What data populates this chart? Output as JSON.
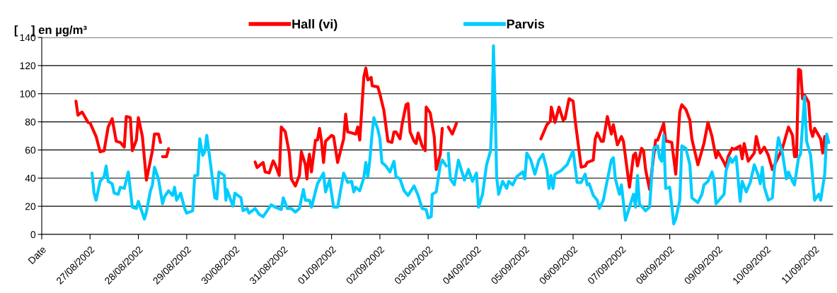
{
  "chart_data": {
    "type": "line",
    "ylabel": "[    ] en µg/m³",
    "xlim": [
      "2002-08-26",
      "2002-09-11T09:00"
    ],
    "xticks": [
      {
        "value": "2002-08-26",
        "label": "Date"
      },
      {
        "value": "2002-08-27",
        "label": "27/08/2002"
      },
      {
        "value": "2002-08-28",
        "label": "28/08/2002"
      },
      {
        "value": "2002-08-29",
        "label": "29/08/2002"
      },
      {
        "value": "2002-08-30",
        "label": "30/08/2002"
      },
      {
        "value": "2002-08-31",
        "label": "31/08/2002"
      },
      {
        "value": "2002-09-01",
        "label": "01/09/2002"
      },
      {
        "value": "2002-09-02",
        "label": "02/09/2002"
      },
      {
        "value": "2002-09-03",
        "label": "03/09/2002"
      },
      {
        "value": "2002-09-04",
        "label": "04/09/2002"
      },
      {
        "value": "2002-09-05",
        "label": "05/09/2002"
      },
      {
        "value": "2002-09-06",
        "label": "06/09/2002"
      },
      {
        "value": "2002-09-07",
        "label": "07/09/2002"
      },
      {
        "value": "2002-09-08",
        "label": "08/09/2002"
      },
      {
        "value": "2002-09-09",
        "label": "09/09/2002"
      },
      {
        "value": "2002-09-10",
        "label": "10/09/2002"
      },
      {
        "value": "2002-09-11",
        "label": "11/09/2002"
      }
    ],
    "ylim": [
      0,
      140
    ],
    "yticks": [
      0,
      20,
      40,
      60,
      80,
      100,
      120,
      140
    ],
    "grid": "y",
    "legend": "top",
    "marker": "none",
    "line_style": "solid",
    "series": [
      {
        "name": "Hall (vi)",
        "color": "#ff0000",
        "x": [
          "2002-08-26T17:00",
          "2002-08-26T18:00",
          "2002-08-26T20:00",
          "2002-08-26T21:00",
          "2002-08-26T23:00",
          "2002-08-27T00:00",
          "2002-08-27T03:00",
          "2002-08-27T05:00",
          "2002-08-27T07:00",
          "2002-08-27T09:00",
          "2002-08-27T11:00",
          "2002-08-27T13:00",
          "2002-08-27T15:00",
          "2002-08-27T17:00",
          "2002-08-27T18:00",
          "2002-08-27T20:00",
          "2002-08-27T21:00",
          "2002-08-27T23:00",
          "2002-08-28T00:00",
          "2002-08-28T02:00",
          "2002-08-28T04:00",
          "2002-08-28T07:00",
          "2002-08-28T08:00",
          "2002-08-28T10:00",
          "2002-08-28T11:00",
          "2002-08-28T11:30",
          "2002-08-28T12:00",
          "2002-08-28T14:00",
          "2002-08-28T15:00",
          "2002-08-29T12:00",
          "2002-08-30T10:00",
          "2002-08-30T11:00",
          "2002-08-30T14:00",
          "2002-08-30T15:00",
          "2002-08-30T17:00",
          "2002-08-30T19:00",
          "2002-08-30T20:00",
          "2002-08-30T22:00",
          "2002-08-30T23:00",
          "2002-08-31T01:00",
          "2002-08-31T03:00",
          "2002-08-31T04:00",
          "2002-08-31T06:00",
          "2002-08-31T08:00",
          "2002-08-31T09:00",
          "2002-08-31T11:00",
          "2002-08-31T11:45",
          "2002-08-31T12:15",
          "2002-08-31T13:00",
          "2002-08-31T14:00",
          "2002-08-31T16:00",
          "2002-08-31T17:00",
          "2002-08-31T18:00",
          "2002-08-31T19:00",
          "2002-08-31T20:00",
          "2002-08-31T21:00",
          "2002-09-01T00:00",
          "2002-09-01T01:00",
          "2002-09-01T03:00",
          "2002-09-01T06:00",
          "2002-09-01T07:00",
          "2002-09-01T08:00",
          "2002-09-01T10:00",
          "2002-09-01T12:00",
          "2002-09-01T13:00",
          "2002-09-01T14:00",
          "2002-09-01T15:00",
          "2002-09-01T16:00",
          "2002-09-01T17:00",
          "2002-09-01T18:00",
          "2002-09-01T19:40",
          "2002-09-01T20:10",
          "2002-09-01T23:00",
          "2002-09-02T00:00",
          "2002-09-02T02:00",
          "2002-09-02T04:00",
          "2002-09-02T06:00",
          "2002-09-02T07:00",
          "2002-09-02T08:00",
          "2002-09-02T10:00",
          "2002-09-02T11:00",
          "2002-09-02T13:00",
          "2002-09-02T14:00",
          "2002-09-02T15:00",
          "2002-09-02T17:00",
          "2002-09-02T18:00",
          "2002-09-02T19:00",
          "2002-09-02T21:00",
          "2002-09-02T22:30",
          "2002-09-02T23:00",
          "2002-09-03T01:00",
          "2002-09-03T03:00",
          "2002-09-03T04:00",
          "2002-09-03T06:00",
          "2002-09-03T07:00",
          "2002-09-03T08:00",
          "2002-09-03T10:00",
          "2002-09-03T12:00",
          "2002-09-03T14:00",
          "2002-09-04T12:00",
          "2002-09-05T08:00",
          "2002-09-05T11:00",
          "2002-09-05T12:40",
          "2002-09-05T13:10",
          "2002-09-05T15:00",
          "2002-09-05T17:00",
          "2002-09-05T19:00",
          "2002-09-05T20:00",
          "2002-09-05T22:00",
          "2002-09-06T00:00",
          "2002-09-06T01:00",
          "2002-09-06T04:00",
          "2002-09-06T06:00",
          "2002-09-06T07:00",
          "2002-09-06T10:00",
          "2002-09-06T11:00",
          "2002-09-06T12:00",
          "2002-09-06T14:00",
          "2002-09-06T15:00",
          "2002-09-06T17:00",
          "2002-09-06T19:00",
          "2002-09-06T20:00",
          "2002-09-06T22:00",
          "2002-09-07T00:00",
          "2002-09-07T01:00",
          "2002-09-07T04:00",
          "2002-09-07T06:00",
          "2002-09-07T07:00",
          "2002-09-07T08:00",
          "2002-09-07T10:00",
          "2002-09-07T11:00",
          "2002-09-07T12:00",
          "2002-09-07T14:00",
          "2002-09-07T17:00",
          "2002-09-07T18:00",
          "2002-09-07T21:00",
          "2002-09-07T22:00",
          "2002-09-07T23:00",
          "2002-09-08T01:00",
          "2002-09-08T03:00",
          "2002-09-08T05:00",
          "2002-09-08T06:00",
          "2002-09-08T08:00",
          "2002-09-08T10:00",
          "2002-09-08T11:00",
          "2002-09-08T14:00",
          "2002-09-08T17:00",
          "2002-09-08T19:00",
          "2002-09-08T21:00",
          "2002-09-08T23:00",
          "2002-09-09T00:00",
          "2002-09-09T03:00",
          "2002-09-09T04:00",
          "2002-09-09T05:00",
          "2002-09-09T07:00",
          "2002-09-09T08:00",
          "2002-09-09T11:00",
          "2002-09-09T12:00",
          "2002-09-09T13:00",
          "2002-09-09T15:00",
          "2002-09-09T18:00",
          "2002-09-09T19:00",
          "2002-09-09T21:00",
          "2002-09-09T23:00",
          "2002-09-10T01:00",
          "2002-09-10T03:00",
          "2002-09-10T08:00",
          "2002-09-10T11:00",
          "2002-09-10T13:00",
          "2002-09-10T14:00",
          "2002-09-10T15:00",
          "2002-09-10T16:00",
          "2002-09-10T17:00",
          "2002-09-10T18:00",
          "2002-09-10T19:00",
          "2002-09-10T21:00",
          "2002-09-10T22:00",
          "2002-09-10T23:00",
          "2002-09-11T00:00",
          "2002-09-11T03:00",
          "2002-09-11T04:00",
          "2002-09-11T05:00"
        ],
        "values": [
          94.7,
          84.7,
          87,
          84.7,
          79.6,
          79.3,
          69.6,
          58.7,
          59.5,
          76.3,
          82.2,
          66.2,
          65.4,
          62,
          83.8,
          83,
          59.5,
          67,
          83,
          69.6,
          38.6,
          59.5,
          71.3,
          71.3,
          65.4,
          null,
          55.3,
          55.3,
          60.9,
          null,
          51.5,
          47.5,
          51.1,
          44.4,
          43.6,
          52.3,
          49.5,
          41.9,
          76.3,
          73,
          57.8,
          39.4,
          34.4,
          41.9,
          58.7,
          49.5,
          39.4,
          49.5,
          57,
          44.4,
          67,
          67,
          75.4,
          66.2,
          51.1,
          66.2,
          70.4,
          69.6,
          51.1,
          67.9,
          85.5,
          72.9,
          72.1,
          71.3,
          76.3,
          67,
          88.9,
          111.5,
          118.2,
          109.8,
          111.5,
          105.6,
          104.8,
          99.8,
          88,
          66.2,
          65.4,
          72.9,
          72.9,
          67.9,
          78,
          92.2,
          93,
          72.9,
          66.2,
          64.6,
          72.1,
          62.9,
          59.5,
          90.5,
          86.4,
          69.6,
          46.1,
          57,
          75.4,
          null,
          76.3,
          71.3,
          78.8,
          null,
          67.9,
          78,
          80.5,
          90.5,
          79.6,
          90.5,
          81.3,
          82.2,
          96.4,
          94.7,
          81.3,
          47.8,
          48.6,
          51.1,
          52.8,
          67.9,
          72.1,
          66.2,
          66.2,
          83.8,
          71.3,
          78,
          63.7,
          69.6,
          66.2,
          33.5,
          56.2,
          57.8,
          48.6,
          61.2,
          59.5,
          46.1,
          31.9,
          67,
          67,
          78.8,
          66.2,
          66.2,
          65.4,
          42.8,
          87.2,
          92.2,
          88.9,
          81.3,
          67.9,
          49.5,
          64.6,
          79.6,
          69.6,
          54.5,
          58.7,
          51.1,
          47.8,
          55.3,
          61.2,
          60.4,
          62.9,
          53.7,
          64.6,
          52,
          57.8,
          69.6,
          57.8,
          62,
          56.2,
          46.1,
          61.2,
          76.3,
          70.4,
          55.3,
          55.3,
          117.4,
          116.5,
          96.4,
          98.9,
          93.9,
          74.6,
          69.6,
          75.4,
          67.9,
          57.8,
          69.6
        ]
      },
      {
        "name": "Parvis",
        "color": "#00ccff",
        "x": [
          "2002-08-27T01:00",
          "2002-08-27T02:00",
          "2002-08-27T03:00",
          "2002-08-27T05:00",
          "2002-08-27T07:00",
          "2002-08-27T08:00",
          "2002-08-27T09:00",
          "2002-08-27T11:00",
          "2002-08-27T12:00",
          "2002-08-27T14:00",
          "2002-08-27T15:00",
          "2002-08-27T17:00",
          "2002-08-27T19:00",
          "2002-08-27T21:00",
          "2002-08-27T23:00",
          "2002-08-28T00:00",
          "2002-08-28T03:00",
          "2002-08-28T04:00",
          "2002-08-28T06:00",
          "2002-08-28T07:00",
          "2002-08-28T08:00",
          "2002-08-28T10:00",
          "2002-08-28T12:00",
          "2002-08-28T13:00",
          "2002-08-28T15:00",
          "2002-08-28T17:00",
          "2002-08-28T18:00",
          "2002-08-28T19:00",
          "2002-08-28T21:00",
          "2002-08-28T23:00",
          "2002-08-29T00:00",
          "2002-08-29T03:00",
          "2002-08-29T04:00",
          "2002-08-29T05:30",
          "2002-08-29T06:30",
          "2002-08-29T08:00",
          "2002-08-29T09:00",
          "2002-08-29T10:00",
          "2002-08-29T12:00",
          "2002-08-29T14:00",
          "2002-08-29T15:00",
          "2002-08-29T16:00",
          "2002-08-29T17:00",
          "2002-08-29T18:40",
          "2002-08-29T19:30",
          "2002-08-29T20:00",
          "2002-08-29T23:00",
          "2002-08-30T00:00",
          "2002-08-30T03:00",
          "2002-08-30T04:00",
          "2002-08-30T06:00",
          "2002-08-30T07:00",
          "2002-08-30T10:00",
          "2002-08-30T12:00",
          "2002-08-30T14:00",
          "2002-08-30T18:00",
          "2002-08-30T20:00",
          "2002-08-30T23:00",
          "2002-08-31T00:00",
          "2002-08-31T02:00",
          "2002-08-31T04:00",
          "2002-08-31T06:00",
          "2002-08-31T08:00",
          "2002-08-31T10:00",
          "2002-08-31T11:00",
          "2002-08-31T13:00",
          "2002-08-31T14:00",
          "2002-08-31T17:00",
          "2002-08-31T20:00",
          "2002-08-31T21:00",
          "2002-08-31T23:00",
          "2002-09-01T01:00",
          "2002-09-01T03:00",
          "2002-09-01T06:00",
          "2002-09-01T08:00",
          "2002-09-01T10:00",
          "2002-09-01T11:00",
          "2002-09-01T12:00",
          "2002-09-01T14:00",
          "2002-09-01T16:00",
          "2002-09-01T17:00",
          "2002-09-01T18:00",
          "2002-09-01T19:00",
          "2002-09-01T20:00",
          "2002-09-01T21:00",
          "2002-09-01T23:00",
          "2002-09-02T00:00",
          "2002-09-02T01:00",
          "2002-09-02T03:00",
          "2002-09-02T05:00",
          "2002-09-02T07:00",
          "2002-09-02T08:00",
          "2002-09-02T10:00",
          "2002-09-02T12:00",
          "2002-09-02T14:00",
          "2002-09-02T17:00",
          "2002-09-02T19:00",
          "2002-09-02T21:00",
          "2002-09-02T23:00",
          "2002-09-03T00:00",
          "2002-09-03T01:30",
          "2002-09-03T02:00",
          "2002-09-03T04:00",
          "2002-09-03T06:00",
          "2002-09-03T07:00",
          "2002-09-03T09:00",
          "2002-09-03T09:30",
          "2002-09-03T10:00",
          "2002-09-03T11:00",
          "2002-09-03T13:00",
          "2002-09-03T15:00",
          "2002-09-03T18:00",
          "2002-09-03T20:00",
          "2002-09-03T22:00",
          "2002-09-04T00:00",
          "2002-09-04T01:00",
          "2002-09-04T03:00",
          "2002-09-04T05:00",
          "2002-09-04T07:00",
          "2002-09-04T07:50",
          "2002-09-04T08:25",
          "2002-09-04T09:20",
          "2002-09-04T10:00",
          "2002-09-04T11:00",
          "2002-09-04T13:00",
          "2002-09-04T15:00",
          "2002-09-04T16:00",
          "2002-09-04T18:00",
          "2002-09-04T20:00",
          "2002-09-04T23:00",
          "2002-09-05T00:00",
          "2002-09-05T01:00",
          "2002-09-05T03:00",
          "2002-09-05T05:00",
          "2002-09-05T07:00",
          "2002-09-05T09:00",
          "2002-09-05T11:00",
          "2002-09-05T12:00",
          "2002-09-05T13:00",
          "2002-09-05T14:00",
          "2002-09-05T15:00",
          "2002-09-05T18:00",
          "2002-09-05T21:00",
          "2002-09-06T00:00",
          "2002-09-06T02:00",
          "2002-09-06T04:00",
          "2002-09-06T06:00",
          "2002-09-06T07:00",
          "2002-09-06T08:00",
          "2002-09-06T10:00",
          "2002-09-06T12:00",
          "2002-09-06T13:00",
          "2002-09-06T15:00",
          "2002-09-06T17:00",
          "2002-09-06T19:00",
          "2002-09-06T20:00",
          "2002-09-06T21:00",
          "2002-09-06T23:00",
          "2002-09-07T00:00",
          "2002-09-07T02:00",
          "2002-09-07T04:00",
          "2002-09-07T06:00",
          "2002-09-07T07:00",
          "2002-09-07T08:00",
          "2002-09-07T09:00",
          "2002-09-07T10:00",
          "2002-09-07T12:00",
          "2002-09-07T14:00",
          "2002-09-07T16:00",
          "2002-09-07T18:00",
          "2002-09-07T19:00",
          "2002-09-07T20:00",
          "2002-09-07T21:00",
          "2002-09-07T22:00",
          "2002-09-08T00:00",
          "2002-09-08T02:00",
          "2002-09-08T03:00",
          "2002-09-08T05:00",
          "2002-09-08T06:00",
          "2002-09-08T08:00",
          "2002-09-08T10:00",
          "2002-09-08T11:00",
          "2002-09-08T14:00",
          "2002-09-08T16:00",
          "2002-09-08T17:00",
          "2002-09-08T19:00",
          "2002-09-08T21:00",
          "2002-09-08T22:00",
          "2002-09-08T23:00",
          "2002-09-09T03:00",
          "2002-09-09T04:00",
          "2002-09-09T06:00",
          "2002-09-09T07:00",
          "2002-09-09T09:00",
          "2002-09-09T11:00",
          "2002-09-09T12:00",
          "2002-09-09T14:00",
          "2002-09-09T16:00",
          "2002-09-09T18:00",
          "2002-09-09T20:00",
          "2002-09-09T21:00",
          "2002-09-09T22:00",
          "2002-09-09T23:00",
          "2002-09-10T01:00",
          "2002-09-10T03:00",
          "2002-09-10T04:00",
          "2002-09-10T06:00",
          "2002-09-10T08:00",
          "2002-09-10T10:00",
          "2002-09-10T11:00",
          "2002-09-10T13:00",
          "2002-09-10T14:00",
          "2002-09-10T16:00",
          "2002-09-10T17:00",
          "2002-09-10T19:00",
          "2002-09-10T20:00",
          "2002-09-10T22:00",
          "2002-09-11T00:00",
          "2002-09-11T02:00",
          "2002-09-11T03:00",
          "2002-09-11T05:00",
          "2002-09-11T06:00",
          "2002-09-11T07:00"
        ],
        "values": [
          43.6,
          29.3,
          24.3,
          37.7,
          41.1,
          48.6,
          37.7,
          36,
          29.3,
          28.5,
          33.5,
          32.7,
          44.4,
          19.3,
          18.4,
          23.5,
          10.9,
          15.9,
          31,
          35.2,
          47.8,
          39.4,
          21.8,
          26.8,
          31,
          27.7,
          33.5,
          24.3,
          29.3,
          18.4,
          15.1,
          16.8,
          41.9,
          41.9,
          67.9,
          56.2,
          58.7,
          70.4,
          48.6,
          26,
          25.2,
          44.4,
          43.6,
          41.9,
          24.3,
          31.9,
          20.1,
          29.3,
          26,
          16.8,
          18.4,
          15.1,
          18.4,
          14.3,
          12.6,
          21,
          19.3,
          17.6,
          26,
          18.4,
          18.4,
          15.9,
          18.4,
          31.9,
          24.3,
          24.3,
          19.3,
          36,
          43.6,
          30.2,
          38.6,
          19.3,
          19.3,
          43.6,
          36.9,
          37.7,
          30.2,
          33.5,
          31,
          40.2,
          51.1,
          41.1,
          52.8,
          69.6,
          83,
          74.6,
          67.9,
          51.1,
          48.6,
          44.4,
          52,
          41.1,
          39.4,
          31,
          27.7,
          34.4,
          27.7,
          18.4,
          17.6,
          11.7,
          12.6,
          28.5,
          30.2,
          49.5,
          52.8,
          48.6,
          null,
          57.8,
          39.4,
          35.2,
          52.8,
          38.6,
          46.1,
          37.7,
          43.6,
          19.3,
          28.5,
          49.5,
          59.5,
          88,
          134.1,
          88,
          41.1,
          28.5,
          37.7,
          32.7,
          37.7,
          35.2,
          41.1,
          44.4,
          39.4,
          57.8,
          52.8,
          42.8,
          52.8,
          57,
          46.1,
          32.7,
          41.9,
          32.7,
          42.8,
          45.3,
          49.5,
          59.5,
          36.9,
          36.9,
          42.8,
          35.2,
          36,
          27.7,
          24.3,
          18.4,
          24.3,
          38.6,
          52.8,
          54.5,
          39.4,
          28.5,
          35.2,
          10.1,
          19.3,
          28.5,
          19.3,
          41.9,
          21,
          20.1,
          16.8,
          19.3,
          61.2,
          62.9,
          54.5,
          52,
          70.4,
          32.7,
          33.5,
          7.5,
          10.9,
          24.3,
          62.9,
          61.2,
          49.5,
          26,
          22.6,
          28.5,
          35.2,
          37.7,
          44.4,
          39.4,
          21.8,
          28.5,
          45.3,
          54.5,
          51.1,
          55.3,
          23.5,
          37.7,
          30.2,
          36.9,
          49.5,
          41.9,
          36,
          47.8,
          33.5,
          24.3,
          26,
          46.1,
          68.7,
          57.8,
          39.4,
          44.4,
          37.7,
          35.2,
          54.5,
          57,
          98.1,
          66.2,
          56.2,
          24.3,
          28.5,
          24.3,
          42.8,
          71.3,
          65.4
        ]
      }
    ]
  }
}
